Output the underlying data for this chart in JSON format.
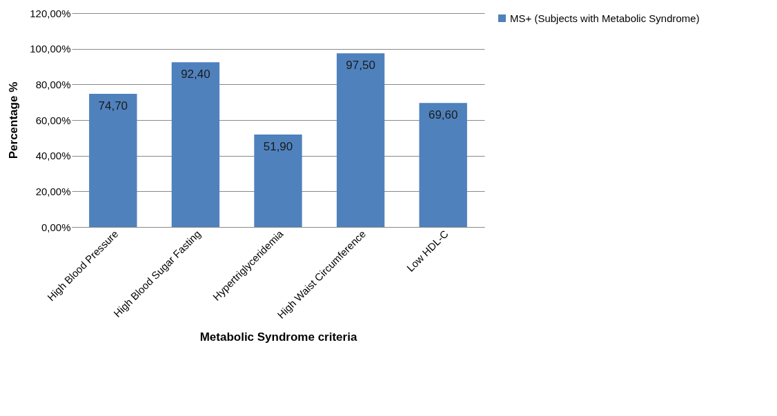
{
  "chart_data": {
    "type": "bar",
    "xlabel": "Metabolic Syndrome criteria",
    "ylabel": "Percentage %",
    "categories": [
      "High Blood Pressure",
      "High Blood Sugar Fasting",
      "Hypertriglyceridemia",
      "High Waist Circumference",
      "Low HDL-C"
    ],
    "series": [
      {
        "name": "MS+ (Subjects with Metabolic Syndrome)",
        "color": "#4f81bd",
        "values": [
          74.7,
          92.4,
          51.9,
          97.5,
          69.6
        ],
        "value_labels": [
          "74,70",
          "92,40",
          "51,90",
          "97,50",
          "69,60"
        ]
      }
    ],
    "ylim": [
      0,
      120
    ],
    "yticks": [
      {
        "value": 0,
        "label": "0,00%"
      },
      {
        "value": 20,
        "label": "20,00%"
      },
      {
        "value": 40,
        "label": "40,00%"
      },
      {
        "value": 60,
        "label": "60,00%"
      },
      {
        "value": 80,
        "label": "80,00%"
      },
      {
        "value": 100,
        "label": "100,00%"
      },
      {
        "value": 120,
        "label": "120,00%"
      }
    ],
    "grid": "y",
    "legend": "right"
  }
}
